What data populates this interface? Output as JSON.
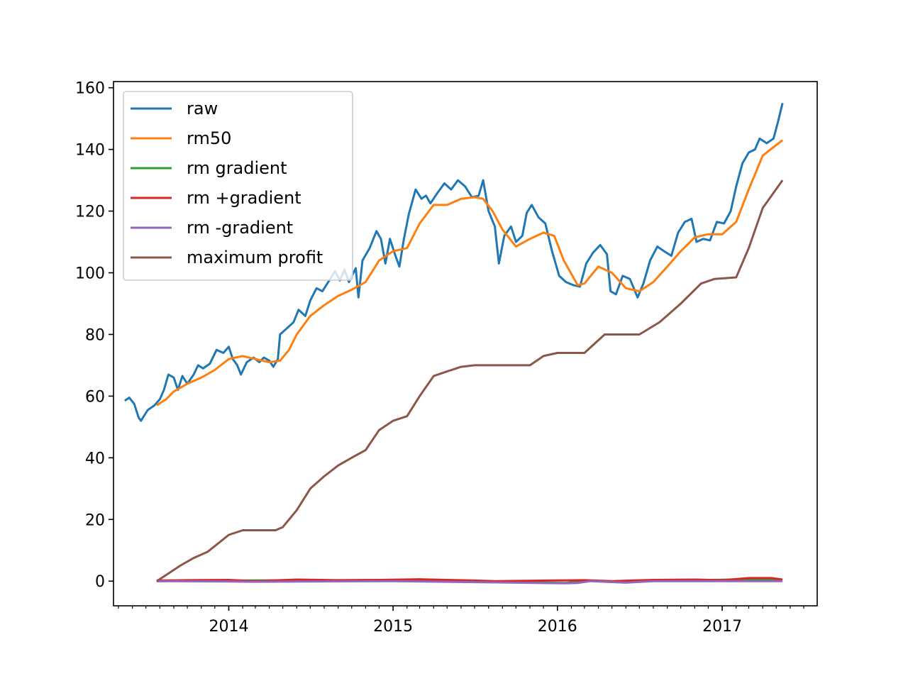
{
  "chart_data": {
    "type": "line",
    "title": "",
    "xlabel": "",
    "ylabel": "",
    "xlim": [
      "2013-04-20",
      "2017-07-31"
    ],
    "ylim": [
      -8,
      162
    ],
    "grid": false,
    "legend": "upper-left",
    "x_ticks": [
      {
        "date": "2014-01-01",
        "label": "2014"
      },
      {
        "date": "2015-01-01",
        "label": "2015"
      },
      {
        "date": "2016-01-01",
        "label": "2016"
      },
      {
        "date": "2017-01-01",
        "label": "2017"
      }
    ],
    "y_ticks": [
      0,
      20,
      40,
      60,
      80,
      100,
      120,
      140,
      160
    ],
    "series": [
      {
        "name": "raw",
        "color": "#1f77b4",
        "points": [
          [
            "2013-05-15",
            58.5
          ],
          [
            "2013-05-25",
            59.5
          ],
          [
            "2013-06-05",
            57.5
          ],
          [
            "2013-06-15",
            53.0
          ],
          [
            "2013-06-20",
            52.0
          ],
          [
            "2013-07-05",
            55.5
          ],
          [
            "2013-07-20",
            57.0
          ],
          [
            "2013-08-01",
            59.0
          ],
          [
            "2013-08-10",
            62.0
          ],
          [
            "2013-08-20",
            67.0
          ],
          [
            "2013-09-01",
            66.0
          ],
          [
            "2013-09-10",
            62.0
          ],
          [
            "2013-09-20",
            66.5
          ],
          [
            "2013-10-01",
            64.0
          ],
          [
            "2013-10-15",
            67.0
          ],
          [
            "2013-10-25",
            70.0
          ],
          [
            "2013-11-05",
            69.0
          ],
          [
            "2013-11-20",
            70.5
          ],
          [
            "2013-12-05",
            75.0
          ],
          [
            "2013-12-20",
            74.0
          ],
          [
            "2014-01-01",
            76.0
          ],
          [
            "2014-01-10",
            72.0
          ],
          [
            "2014-01-20",
            70.0
          ],
          [
            "2014-01-28",
            67.0
          ],
          [
            "2014-02-10",
            71.0
          ],
          [
            "2014-02-25",
            72.5
          ],
          [
            "2014-03-10",
            71.0
          ],
          [
            "2014-03-20",
            72.5
          ],
          [
            "2014-04-01",
            71.5
          ],
          [
            "2014-04-10",
            69.5
          ],
          [
            "2014-04-20",
            72.0
          ],
          [
            "2014-04-25",
            80.0
          ],
          [
            "2014-05-10",
            82.0
          ],
          [
            "2014-05-25",
            84.0
          ],
          [
            "2014-06-05",
            88.0
          ],
          [
            "2014-06-20",
            86.0
          ],
          [
            "2014-07-01",
            91.0
          ],
          [
            "2014-07-15",
            95.0
          ],
          [
            "2014-07-28",
            94.0
          ],
          [
            "2014-08-10",
            97.0
          ],
          [
            "2014-08-25",
            100.5
          ],
          [
            "2014-09-05",
            97.5
          ],
          [
            "2014-09-15",
            101.0
          ],
          [
            "2014-09-25",
            97.0
          ],
          [
            "2014-10-10",
            101.5
          ],
          [
            "2014-10-16",
            92.0
          ],
          [
            "2014-10-25",
            104.0
          ],
          [
            "2014-11-10",
            108.0
          ],
          [
            "2014-11-25",
            113.5
          ],
          [
            "2014-12-05",
            111.0
          ],
          [
            "2014-12-15",
            103.0
          ],
          [
            "2014-12-25",
            111.0
          ],
          [
            "2015-01-05",
            106.0
          ],
          [
            "2015-01-15",
            102.0
          ],
          [
            "2015-01-25",
            111.0
          ],
          [
            "2015-02-05",
            119.0
          ],
          [
            "2015-02-20",
            127.0
          ],
          [
            "2015-03-05",
            124.0
          ],
          [
            "2015-03-15",
            125.0
          ],
          [
            "2015-03-25",
            122.5
          ],
          [
            "2015-04-10",
            126.0
          ],
          [
            "2015-04-25",
            129.0
          ],
          [
            "2015-05-10",
            127.0
          ],
          [
            "2015-05-25",
            130.0
          ],
          [
            "2015-06-10",
            128.0
          ],
          [
            "2015-06-25",
            124.5
          ],
          [
            "2015-07-10",
            125.0
          ],
          [
            "2015-07-20",
            130.0
          ],
          [
            "2015-08-01",
            120.0
          ],
          [
            "2015-08-15",
            115.0
          ],
          [
            "2015-08-24",
            103.0
          ],
          [
            "2015-09-05",
            112.0
          ],
          [
            "2015-09-20",
            115.0
          ],
          [
            "2015-10-01",
            110.0
          ],
          [
            "2015-10-15",
            112.0
          ],
          [
            "2015-10-25",
            119.5
          ],
          [
            "2015-11-05",
            122.0
          ],
          [
            "2015-11-20",
            118.0
          ],
          [
            "2015-12-05",
            116.0
          ],
          [
            "2015-12-20",
            107.0
          ],
          [
            "2016-01-05",
            99.0
          ],
          [
            "2016-01-20",
            97.0
          ],
          [
            "2016-02-05",
            96.0
          ],
          [
            "2016-02-20",
            95.5
          ],
          [
            "2016-03-05",
            103.0
          ],
          [
            "2016-03-20",
            106.5
          ],
          [
            "2016-04-05",
            109.0
          ],
          [
            "2016-04-20",
            106.0
          ],
          [
            "2016-04-28",
            94.0
          ],
          [
            "2016-05-10",
            93.0
          ],
          [
            "2016-05-25",
            99.0
          ],
          [
            "2016-06-10",
            98.0
          ],
          [
            "2016-06-27",
            92.0
          ],
          [
            "2016-07-10",
            96.5
          ],
          [
            "2016-07-25",
            104.0
          ],
          [
            "2016-08-10",
            108.5
          ],
          [
            "2016-08-25",
            107.0
          ],
          [
            "2016-09-10",
            105.5
          ],
          [
            "2016-09-25",
            113.0
          ],
          [
            "2016-10-10",
            116.5
          ],
          [
            "2016-10-25",
            117.5
          ],
          [
            "2016-11-05",
            110.0
          ],
          [
            "2016-11-20",
            111.0
          ],
          [
            "2016-12-05",
            110.5
          ],
          [
            "2016-12-20",
            116.5
          ],
          [
            "2017-01-05",
            116.0
          ],
          [
            "2017-01-20",
            120.0
          ],
          [
            "2017-02-01",
            128.0
          ],
          [
            "2017-02-15",
            135.5
          ],
          [
            "2017-03-01",
            139.0
          ],
          [
            "2017-03-15",
            140.0
          ],
          [
            "2017-03-25",
            143.5
          ],
          [
            "2017-04-10",
            142.0
          ],
          [
            "2017-04-25",
            143.5
          ],
          [
            "2017-05-05",
            149.0
          ],
          [
            "2017-05-15",
            155.0
          ]
        ]
      },
      {
        "name": "rm50",
        "color": "#ff7f0e",
        "points": [
          [
            "2013-07-25",
            57.0
          ],
          [
            "2013-08-15",
            59.0
          ],
          [
            "2013-09-01",
            61.5
          ],
          [
            "2013-10-01",
            64.0
          ],
          [
            "2013-11-01",
            66.0
          ],
          [
            "2013-12-01",
            68.5
          ],
          [
            "2014-01-01",
            72.0
          ],
          [
            "2014-02-01",
            73.0
          ],
          [
            "2014-03-01",
            72.0
          ],
          [
            "2014-04-01",
            71.0
          ],
          [
            "2014-04-25",
            71.5
          ],
          [
            "2014-05-15",
            75.0
          ],
          [
            "2014-06-01",
            80.0
          ],
          [
            "2014-07-01",
            86.0
          ],
          [
            "2014-08-01",
            89.5
          ],
          [
            "2014-09-01",
            92.5
          ],
          [
            "2014-10-01",
            94.5
          ],
          [
            "2014-11-01",
            97.0
          ],
          [
            "2014-12-01",
            104.0
          ],
          [
            "2015-01-01",
            107.0
          ],
          [
            "2015-02-01",
            108.0
          ],
          [
            "2015-03-01",
            116.0
          ],
          [
            "2015-04-01",
            122.0
          ],
          [
            "2015-05-01",
            122.0
          ],
          [
            "2015-06-01",
            124.0
          ],
          [
            "2015-07-01",
            124.5
          ],
          [
            "2015-07-20",
            124.0
          ],
          [
            "2015-08-10",
            120.0
          ],
          [
            "2015-09-01",
            114.0
          ],
          [
            "2015-10-01",
            108.5
          ],
          [
            "2015-11-01",
            111.0
          ],
          [
            "2015-12-01",
            113.0
          ],
          [
            "2015-12-25",
            112.0
          ],
          [
            "2016-01-15",
            104.0
          ],
          [
            "2016-02-15",
            96.0
          ],
          [
            "2016-03-01",
            96.5
          ],
          [
            "2016-04-01",
            102.0
          ],
          [
            "2016-05-01",
            100.0
          ],
          [
            "2016-06-01",
            95.0
          ],
          [
            "2016-07-01",
            94.0
          ],
          [
            "2016-08-01",
            97.0
          ],
          [
            "2016-09-01",
            102.0
          ],
          [
            "2016-10-01",
            107.0
          ],
          [
            "2016-11-01",
            111.5
          ],
          [
            "2016-12-01",
            112.5
          ],
          [
            "2017-01-01",
            112.5
          ],
          [
            "2017-02-01",
            116.5
          ],
          [
            "2017-03-01",
            127.0
          ],
          [
            "2017-04-01",
            138.0
          ],
          [
            "2017-05-15",
            143.0
          ]
        ]
      },
      {
        "name": "rm gradient",
        "color": "#2ca02c",
        "points": [
          [
            "2013-07-25",
            0.0
          ],
          [
            "2014-01-01",
            0.2
          ],
          [
            "2014-06-01",
            0.3
          ],
          [
            "2015-01-01",
            0.1
          ],
          [
            "2015-08-15",
            -0.3
          ],
          [
            "2015-10-01",
            -0.4
          ],
          [
            "2016-01-20",
            -0.6
          ],
          [
            "2016-03-01",
            0.1
          ],
          [
            "2016-06-01",
            -0.3
          ],
          [
            "2016-09-01",
            0.2
          ],
          [
            "2017-03-01",
            0.6
          ],
          [
            "2017-05-15",
            0.3
          ]
        ]
      },
      {
        "name": "rm +gradient",
        "color": "#d62728",
        "points": [
          [
            "2013-07-25",
            0.2
          ],
          [
            "2013-10-01",
            0.3
          ],
          [
            "2014-01-01",
            0.4
          ],
          [
            "2014-03-01",
            0.0
          ],
          [
            "2014-06-01",
            0.5
          ],
          [
            "2014-09-01",
            0.3
          ],
          [
            "2014-12-01",
            0.4
          ],
          [
            "2015-03-01",
            0.6
          ],
          [
            "2015-07-01",
            0.2
          ],
          [
            "2015-08-15",
            0.0
          ],
          [
            "2016-03-01",
            0.3
          ],
          [
            "2016-05-01",
            0.0
          ],
          [
            "2016-08-01",
            0.4
          ],
          [
            "2016-11-01",
            0.5
          ],
          [
            "2017-01-01",
            0.3
          ],
          [
            "2017-03-01",
            1.0
          ],
          [
            "2017-04-20",
            1.0
          ],
          [
            "2017-05-15",
            0.5
          ]
        ]
      },
      {
        "name": "rm -gradient",
        "color": "#9467bd",
        "points": [
          [
            "2013-07-25",
            0.0
          ],
          [
            "2014-01-01",
            -0.1
          ],
          [
            "2014-03-01",
            -0.2
          ],
          [
            "2015-01-01",
            0.0
          ],
          [
            "2015-08-15",
            -0.4
          ],
          [
            "2015-10-01",
            -0.5
          ],
          [
            "2016-01-20",
            -0.7
          ],
          [
            "2016-02-15",
            -0.6
          ],
          [
            "2016-03-15",
            0.0
          ],
          [
            "2016-06-01",
            -0.5
          ],
          [
            "2016-08-01",
            0.0
          ],
          [
            "2017-05-15",
            0.0
          ]
        ]
      },
      {
        "name": "maximum profit",
        "color": "#8c564b",
        "points": [
          [
            "2013-07-25",
            0.0
          ],
          [
            "2013-08-15",
            2.0
          ],
          [
            "2013-09-15",
            5.0
          ],
          [
            "2013-10-15",
            7.5
          ],
          [
            "2013-11-15",
            9.5
          ],
          [
            "2013-12-15",
            13.0
          ],
          [
            "2014-01-01",
            15.0
          ],
          [
            "2014-02-01",
            16.5
          ],
          [
            "2014-04-15",
            16.5
          ],
          [
            "2014-05-01",
            17.5
          ],
          [
            "2014-06-01",
            23.0
          ],
          [
            "2014-07-01",
            30.0
          ],
          [
            "2014-08-01",
            34.0
          ],
          [
            "2014-09-01",
            37.5
          ],
          [
            "2014-10-01",
            40.0
          ],
          [
            "2014-11-01",
            42.5
          ],
          [
            "2014-12-01",
            49.0
          ],
          [
            "2015-01-01",
            52.0
          ],
          [
            "2015-02-01",
            53.5
          ],
          [
            "2015-03-01",
            60.0
          ],
          [
            "2015-04-01",
            66.5
          ],
          [
            "2015-05-01",
            68.0
          ],
          [
            "2015-06-01",
            69.5
          ],
          [
            "2015-07-01",
            70.0
          ],
          [
            "2015-11-01",
            70.0
          ],
          [
            "2015-12-01",
            73.0
          ],
          [
            "2016-01-01",
            74.0
          ],
          [
            "2016-03-01",
            74.0
          ],
          [
            "2016-04-15",
            80.0
          ],
          [
            "2016-07-01",
            80.0
          ],
          [
            "2016-08-15",
            84.0
          ],
          [
            "2016-10-01",
            90.0
          ],
          [
            "2016-11-15",
            96.5
          ],
          [
            "2016-12-15",
            98.0
          ],
          [
            "2017-02-01",
            98.5
          ],
          [
            "2017-03-01",
            108.0
          ],
          [
            "2017-04-01",
            121.0
          ],
          [
            "2017-05-15",
            130.0
          ]
        ]
      }
    ]
  }
}
